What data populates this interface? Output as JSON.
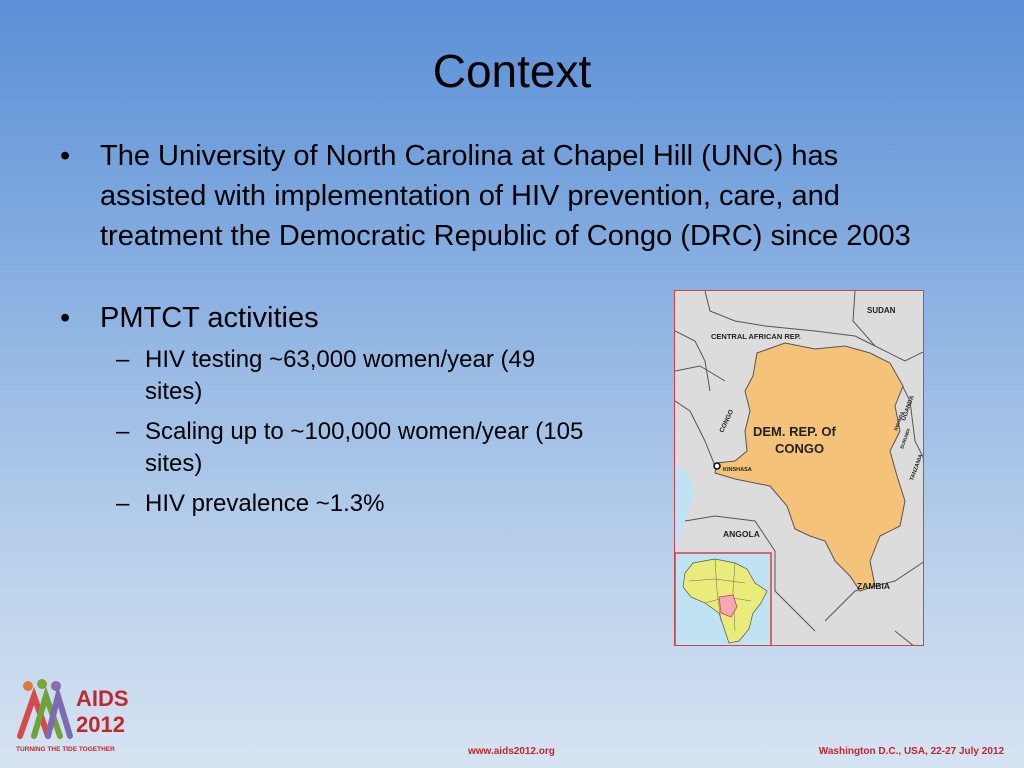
{
  "slide": {
    "title": "Context"
  },
  "bullets": [
    {
      "text": "The University of North Carolina at Chapel Hill (UNC) has assisted with implementation of HIV prevention, care, and treatment the Democratic Republic of Congo (DRC) since 2003"
    },
    {
      "text": "PMTCT activities",
      "sub": [
        "HIV testing ~63,000 women/year (49 sites)",
        "Scaling up to ~100,000 women/year (105 sites)",
        "HIV prevalence ~1.3%"
      ]
    }
  ],
  "bullet_mark": "•",
  "dash_mark": "–",
  "map": {
    "labels": {
      "sudan": "SUDAN",
      "car": "CENTRAL AFRICAN REP.",
      "drc_line1": "DEM. REP. Of",
      "drc_line2": "CONGO",
      "congo": "CONGO",
      "kinshasa": "KINSHASA",
      "uganda": "UGANDA",
      "rwanda": "RWANDA",
      "burundi": "BURUNDI",
      "tanzania": "TANZANIA",
      "angola": "ANGOLA",
      "zambia": "ZAMBIA"
    },
    "colors": {
      "drc_fill": "#f5c27a",
      "land": "#dcdcdc",
      "ocean": "#bfe3f2",
      "africa_fill": "#e9ec7a",
      "frame": "#cc4444"
    }
  },
  "logo": {
    "text_aids": "AIDS",
    "text_year": "2012",
    "tagline": "TURNING THE TIDE TOGETHER"
  },
  "footer": {
    "url": "www.aids2012.org",
    "event": "Washington D.C., USA, 22-27 July 2012"
  }
}
